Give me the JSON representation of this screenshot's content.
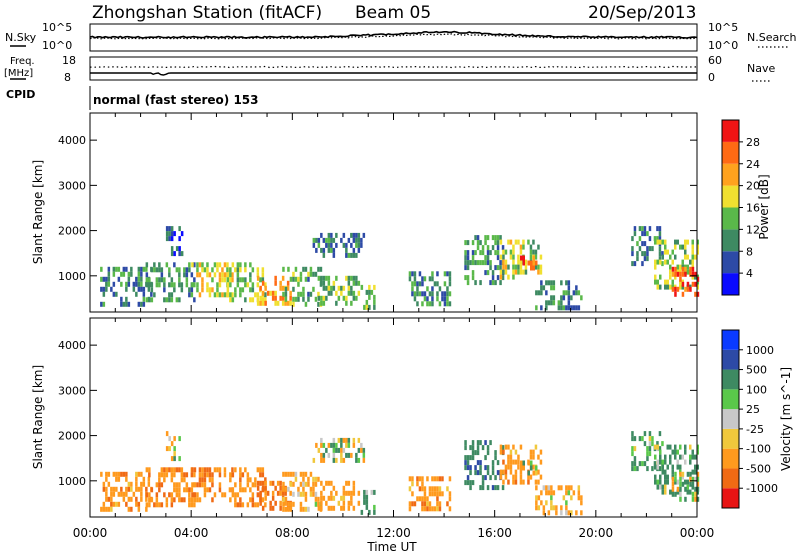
{
  "header": {
    "station": "Zhongshan Station (fitACF)",
    "beam": "Beam 05",
    "date": "20/Sep/2013"
  },
  "summary_panels": {
    "nsky_label": "N.Sky",
    "nsky_top": "10^5",
    "nsky_bottom": "10^0",
    "nsearch_label": "N.Search",
    "nsearch_top": "10^5",
    "nsearch_bottom": "10^0",
    "freq_label_1": "Freq.",
    "freq_label_2": "[MHz]",
    "freq_top": "18",
    "freq_bottom": "8",
    "nave_label": "Nave",
    "nave_top": "60",
    "nave_bottom": "0",
    "cpid_label": "CPID",
    "cpid_text": "normal (fast stereo) 153"
  },
  "colors": {
    "power": [
      "#0a0aff",
      "#2d4aa6",
      "#3e8a62",
      "#5ab84a",
      "#f0e030",
      "#ffa21e",
      "#ff6a14",
      "#f01414"
    ],
    "velocity": [
      "#e81414",
      "#f06a14",
      "#ff9a1e",
      "#f0c83c",
      "#c8c8c8",
      "#5ac84a",
      "#3e8a62",
      "#2d4aa6",
      "#0a3aff"
    ]
  },
  "chart_data": [
    {
      "type": "heatmap",
      "title": "Power",
      "xlabel": "",
      "ylabel": "Slant Range [km]",
      "x_ticks": [
        "00:00",
        "04:00",
        "08:00",
        "12:00",
        "16:00",
        "20:00",
        "00:00"
      ],
      "y_ticks": [
        1000,
        2000,
        3000,
        4000
      ],
      "xlim": [
        0,
        24
      ],
      "ylim": [
        200,
        4600
      ],
      "colorbar": {
        "label": "Power [dB]",
        "ticks": [
          4,
          8,
          12,
          16,
          20,
          24,
          28
        ],
        "range": [
          0,
          32
        ]
      },
      "blobs": [
        {
          "t0": 0.4,
          "t1": 2.4,
          "r0": 400,
          "r1": 1200,
          "v": 9
        },
        {
          "t0": 2.2,
          "t1": 4.1,
          "r0": 500,
          "r1": 1300,
          "v": 11
        },
        {
          "t0": 3.0,
          "t1": 3.6,
          "r0": 1500,
          "r1": 2100,
          "v": 7
        },
        {
          "t0": 4.0,
          "t1": 5.6,
          "r0": 600,
          "r1": 1300,
          "v": 18
        },
        {
          "t0": 5.4,
          "t1": 6.9,
          "r0": 500,
          "r1": 1300,
          "v": 15
        },
        {
          "t0": 6.6,
          "t1": 7.9,
          "r0": 350,
          "r1": 1000,
          "v": 22
        },
        {
          "t0": 7.6,
          "t1": 9.1,
          "r0": 400,
          "r1": 1200,
          "v": 12
        },
        {
          "t0": 8.8,
          "t1": 10.8,
          "r0": 1400,
          "r1": 1950,
          "v": 9
        },
        {
          "t0": 9.0,
          "t1": 10.6,
          "r0": 400,
          "r1": 1000,
          "v": 13
        },
        {
          "t0": 10.7,
          "t1": 11.2,
          "r0": 300,
          "r1": 800,
          "v": 16
        },
        {
          "t0": 12.6,
          "t1": 14.2,
          "r0": 400,
          "r1": 1100,
          "v": 10
        },
        {
          "t0": 14.8,
          "t1": 16.3,
          "r0": 900,
          "r1": 1900,
          "v": 11
        },
        {
          "t0": 16.2,
          "t1": 17.8,
          "r0": 1000,
          "r1": 1800,
          "v": 16
        },
        {
          "t0": 17.0,
          "t1": 17.6,
          "r0": 1150,
          "r1": 1450,
          "v": 26
        },
        {
          "t0": 17.6,
          "t1": 19.4,
          "r0": 300,
          "r1": 900,
          "v": 10
        },
        {
          "t0": 21.4,
          "t1": 22.6,
          "r0": 1300,
          "r1": 2100,
          "v": 9
        },
        {
          "t0": 22.3,
          "t1": 24.0,
          "r0": 700,
          "r1": 1800,
          "v": 15
        },
        {
          "t0": 23.0,
          "t1": 24.0,
          "r0": 600,
          "r1": 1200,
          "v": 28
        }
      ]
    },
    {
      "type": "heatmap",
      "title": "Velocity",
      "xlabel": "Time UT",
      "ylabel": "Slant Range [km]",
      "x_ticks": [
        "00:00",
        "04:00",
        "08:00",
        "12:00",
        "16:00",
        "20:00",
        "00:00"
      ],
      "y_ticks": [
        1000,
        2000,
        3000,
        4000
      ],
      "xlim": [
        0,
        24
      ],
      "ylim": [
        200,
        4600
      ],
      "colorbar": {
        "label": "Velocity [m s^-1]",
        "ticks": [
          -1000,
          -500,
          -100,
          -25,
          25,
          100,
          500,
          1000
        ],
        "range": [
          -1200,
          1200
        ]
      },
      "blobs": [
        {
          "t0": 0.4,
          "t1": 2.4,
          "r0": 400,
          "r1": 1200,
          "v": -300
        },
        {
          "t0": 2.2,
          "t1": 4.1,
          "r0": 500,
          "r1": 1300,
          "v": -400
        },
        {
          "t0": 3.0,
          "t1": 3.6,
          "r0": 1500,
          "r1": 2100,
          "v": 0
        },
        {
          "t0": 4.0,
          "t1": 5.6,
          "r0": 600,
          "r1": 1300,
          "v": -450
        },
        {
          "t0": 5.4,
          "t1": 6.9,
          "r0": 500,
          "r1": 1300,
          "v": -350
        },
        {
          "t0": 6.6,
          "t1": 7.9,
          "r0": 350,
          "r1": 1000,
          "v": -600
        },
        {
          "t0": 7.6,
          "t1": 9.1,
          "r0": 400,
          "r1": 1200,
          "v": -200
        },
        {
          "t0": 8.8,
          "t1": 10.8,
          "r0": 1400,
          "r1": 1950,
          "v": 0
        },
        {
          "t0": 9.0,
          "t1": 10.6,
          "r0": 400,
          "r1": 1000,
          "v": -250
        },
        {
          "t0": 10.7,
          "t1": 11.2,
          "r0": 300,
          "r1": 800,
          "v": 150
        },
        {
          "t0": 12.6,
          "t1": 14.2,
          "r0": 400,
          "r1": 1100,
          "v": -300
        },
        {
          "t0": 14.8,
          "t1": 16.3,
          "r0": 900,
          "r1": 1900,
          "v": 400
        },
        {
          "t0": 16.2,
          "t1": 17.8,
          "r0": 1000,
          "r1": 1800,
          "v": -300
        },
        {
          "t0": 17.0,
          "t1": 17.6,
          "r0": 1150,
          "r1": 1450,
          "v": 0
        },
        {
          "t0": 17.6,
          "t1": 19.4,
          "r0": 300,
          "r1": 900,
          "v": -200
        },
        {
          "t0": 21.4,
          "t1": 22.6,
          "r0": 1300,
          "r1": 2100,
          "v": 200
        },
        {
          "t0": 22.3,
          "t1": 24.0,
          "r0": 700,
          "r1": 1800,
          "v": 200
        },
        {
          "t0": 23.0,
          "t1": 24.0,
          "r0": 600,
          "r1": 1200,
          "v": 0
        }
      ]
    }
  ]
}
